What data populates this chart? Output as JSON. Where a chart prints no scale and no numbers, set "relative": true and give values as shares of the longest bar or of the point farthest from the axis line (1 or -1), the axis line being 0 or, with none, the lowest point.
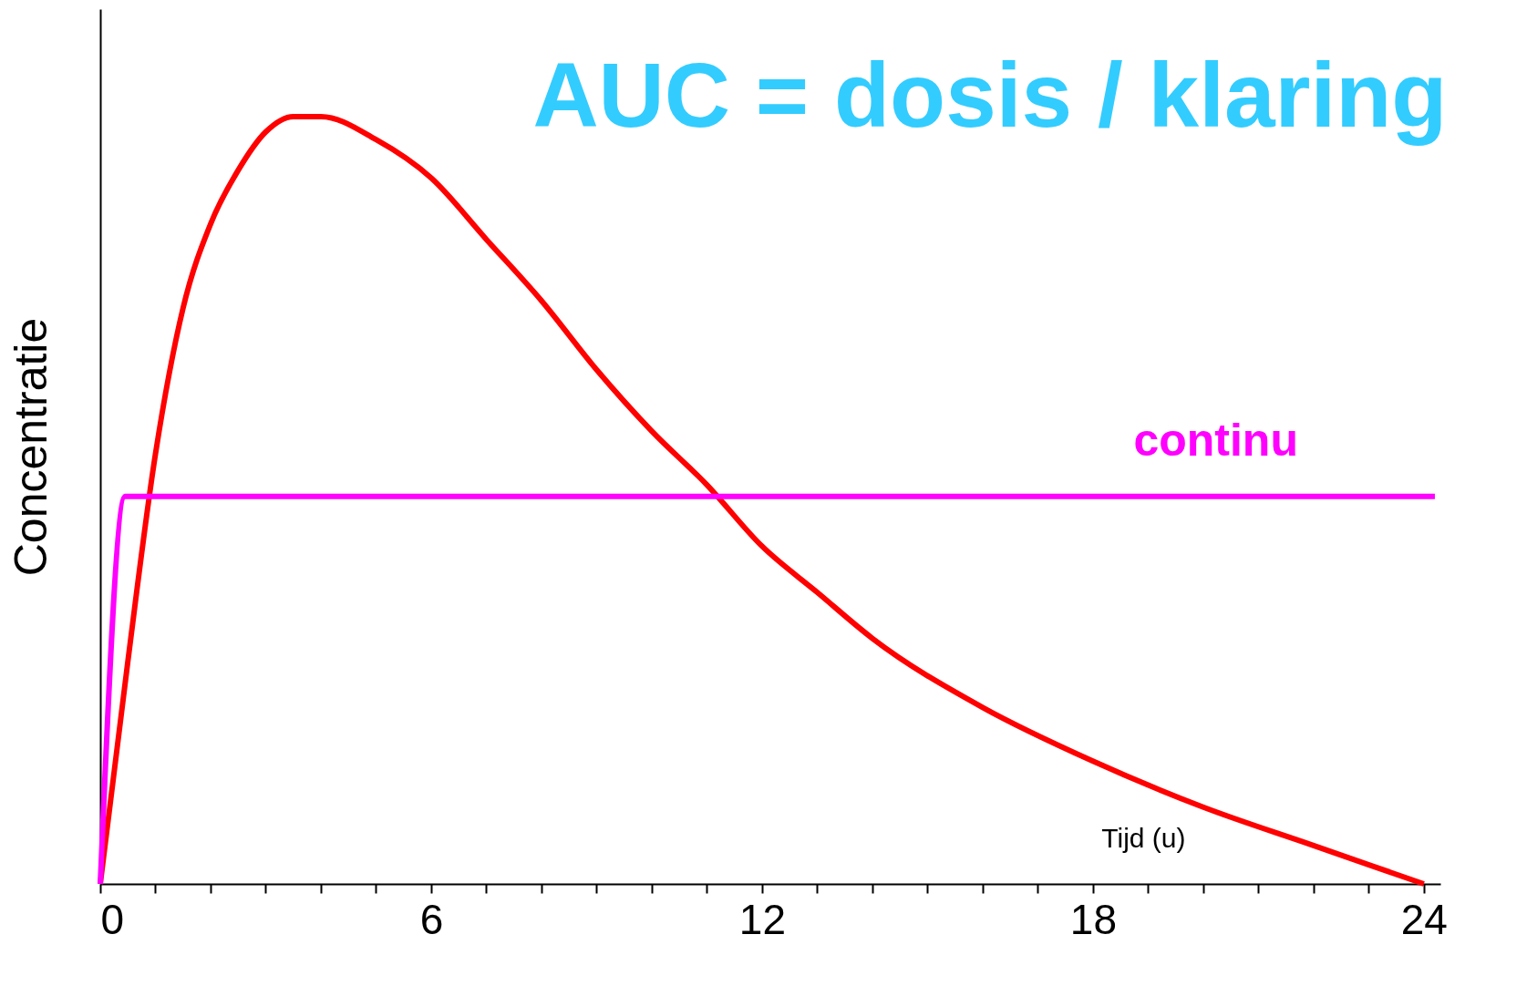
{
  "chart_data": {
    "type": "line",
    "title": "AUC = dosis / klaring",
    "xlabel": "Tijd (u)",
    "ylabel": "Concentratie",
    "relative": true,
    "legend": false,
    "marker": "none",
    "line_style": "solid",
    "xlim": [
      0,
      24.3
    ],
    "xticks": [
      0,
      {
        "value": 1,
        "label": null
      },
      {
        "value": 2,
        "label": null
      },
      {
        "value": 3,
        "label": null
      },
      {
        "value": 4,
        "label": null
      },
      {
        "value": 5,
        "label": null
      },
      6,
      {
        "value": 7,
        "label": null
      },
      {
        "value": 8,
        "label": null
      },
      {
        "value": 9,
        "label": null
      },
      {
        "value": 10,
        "label": null
      },
      {
        "value": 11,
        "label": null
      },
      12,
      {
        "value": 13,
        "label": null
      },
      {
        "value": 14,
        "label": null
      },
      {
        "value": 15,
        "label": null
      },
      {
        "value": 16,
        "label": null
      },
      {
        "value": 17,
        "label": null
      },
      18,
      {
        "value": 19,
        "label": null
      },
      {
        "value": 20,
        "label": null
      },
      {
        "value": 21,
        "label": null
      },
      {
        "value": 22,
        "label": null
      },
      {
        "value": 23,
        "label": null
      },
      24
    ],
    "series": [
      {
        "color": "#ff0000",
        "x": [
          0,
          0.5,
          1,
          1.5,
          2,
          2.5,
          3,
          3.5,
          4,
          5,
          6,
          7,
          8,
          9,
          10,
          11,
          12,
          13,
          14,
          16,
          18,
          20,
          22,
          24
        ],
        "values": [
          0,
          0.29,
          0.56,
          0.75,
          0.86,
          0.93,
          0.98,
          1.0,
          1.0,
          0.97,
          0.92,
          0.84,
          0.76,
          0.67,
          0.59,
          0.52,
          0.44,
          0.38,
          0.32,
          0.23,
          0.16,
          0.1,
          0.05,
          0
        ]
      },
      {
        "name": "continu",
        "color": "#ff00ff",
        "x": [
          0,
          0.45,
          24.2
        ],
        "values": [
          0,
          0.505,
          0.505
        ]
      }
    ]
  }
}
